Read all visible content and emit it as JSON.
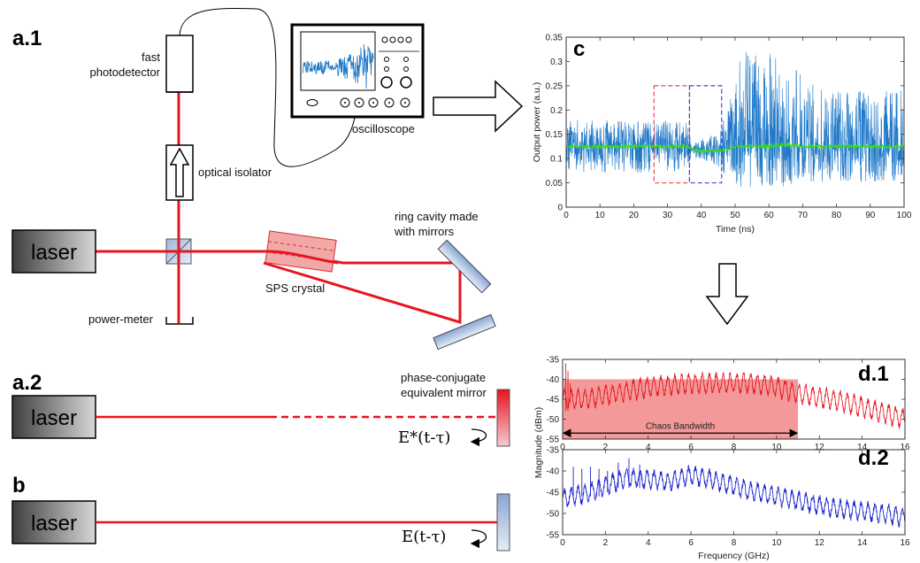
{
  "labels": {
    "a1": "a.1",
    "a2": "a.2",
    "b": "b",
    "c": "c",
    "d1": "d.1",
    "d2": "d.2"
  },
  "diagram": {
    "laser": "laser",
    "fast_photodetector_line1": "fast",
    "fast_photodetector_line2": "photodetector",
    "oscilloscope": "oscilloscope",
    "optical_isolator": "optical isolator",
    "ring_cavity_line1": "ring cavity made",
    "ring_cavity_line2": "with mirrors",
    "sps_crystal": "SPS crystal",
    "power_meter": "power-meter",
    "pc_mirror_line1": "phase-conjugate",
    "pc_mirror_line2": "equivalent mirror",
    "eq_a2": "E*(t-τ)",
    "eq_b": "E(t-τ)"
  },
  "colors": {
    "beam": "#e8141e",
    "time_trace": "#1f78c8",
    "mean_trace": "#33dd22",
    "spectrum_d1": "#e8141e",
    "spectrum_d2": "#1a22cc",
    "bandwidth_fill": "#f08080"
  },
  "chart_data": [
    {
      "id": "c",
      "type": "line",
      "title": "",
      "xlabel": "Time (ns)",
      "ylabel": "Output power (a.u.)",
      "xlim": [
        0,
        100
      ],
      "ylim": [
        0,
        0.35
      ],
      "xticks": [
        0,
        10,
        20,
        30,
        40,
        50,
        60,
        70,
        80,
        90,
        100
      ],
      "yticks": [
        0,
        0.05,
        0.1,
        0.15,
        0.2,
        0.25,
        0.3,
        0.35
      ],
      "ytick_labels": [
        "0",
        "0.05",
        "0.1",
        "0.15",
        "0.2",
        "0.25",
        "0.3",
        "0.35"
      ],
      "series": [
        {
          "x": [
            0,
            10,
            20,
            30,
            36,
            37,
            40,
            45,
            48,
            50,
            52,
            55,
            60,
            65,
            70,
            80,
            90,
            100
          ],
          "y": [
            0.125,
            0.125,
            0.125,
            0.125,
            0.125,
            0.12,
            0.115,
            0.115,
            0.12,
            0.125,
            0.125,
            0.125,
            0.125,
            0.13,
            0.125,
            0.125,
            0.125,
            0.125
          ],
          "envelope_min": [
            0.07,
            0.07,
            0.07,
            0.07,
            0.08,
            0.1,
            0.1,
            0.08,
            0.06,
            0.05,
            0.04,
            0.04,
            0.04,
            0.04,
            0.05,
            0.05,
            0.05,
            0.05
          ],
          "envelope_max": [
            0.18,
            0.18,
            0.18,
            0.18,
            0.18,
            0.13,
            0.14,
            0.16,
            0.2,
            0.27,
            0.32,
            0.33,
            0.33,
            0.31,
            0.27,
            0.24,
            0.24,
            0.24
          ]
        }
      ],
      "annotations": [
        {
          "kind": "dashed-box",
          "color": "#e8444e",
          "x": [
            26,
            36.5
          ],
          "y": [
            0.05,
            0.25
          ]
        },
        {
          "kind": "dashed-box",
          "color": "#4444dd",
          "x": [
            36.5,
            46
          ],
          "y": [
            0.05,
            0.25
          ]
        }
      ]
    },
    {
      "id": "d.1",
      "type": "line",
      "title": "",
      "xlabel": "",
      "ylabel": "Magnitude (dBm)",
      "xlim": [
        0,
        16
      ],
      "ylim": [
        -55,
        -35
      ],
      "xticks": [
        0,
        2,
        4,
        6,
        8,
        10,
        12,
        14,
        16
      ],
      "yticks": [
        -35,
        -40,
        -45,
        -50,
        -55
      ],
      "x": [
        0,
        1,
        2,
        3,
        4,
        5,
        6,
        7,
        8,
        9,
        10,
        11,
        12,
        13,
        14,
        15,
        16
      ],
      "series": [
        {
          "y": [
            -45,
            -45,
            -44,
            -43,
            -42,
            -41.5,
            -41,
            -41,
            -41,
            -41,
            -42,
            -43.5,
            -44.5,
            -45.5,
            -47,
            -48.5,
            -50
          ]
        }
      ],
      "annotations": [
        {
          "kind": "shaded-band",
          "text": "Chaos Bandwidth",
          "x": [
            0,
            11
          ]
        }
      ]
    },
    {
      "id": "d.2",
      "type": "line",
      "title": "",
      "xlabel": "Frequency (GHz)",
      "ylabel": "",
      "xlim": [
        0,
        16
      ],
      "ylim": [
        -55,
        -35
      ],
      "xticks": [
        0,
        2,
        4,
        6,
        8,
        10,
        12,
        14,
        16
      ],
      "yticks": [
        -35,
        -40,
        -45,
        -50,
        -55
      ],
      "x": [
        0,
        1,
        2,
        3,
        4,
        5,
        6,
        7,
        8,
        9,
        10,
        11,
        12,
        13,
        14,
        15,
        16
      ],
      "series": [
        {
          "y": [
            -46.5,
            -45.5,
            -43.5,
            -41.5,
            -42,
            -42.5,
            -41,
            -42,
            -43.5,
            -45,
            -46,
            -47,
            -48,
            -49,
            -49.5,
            -50,
            -51
          ]
        }
      ]
    }
  ]
}
